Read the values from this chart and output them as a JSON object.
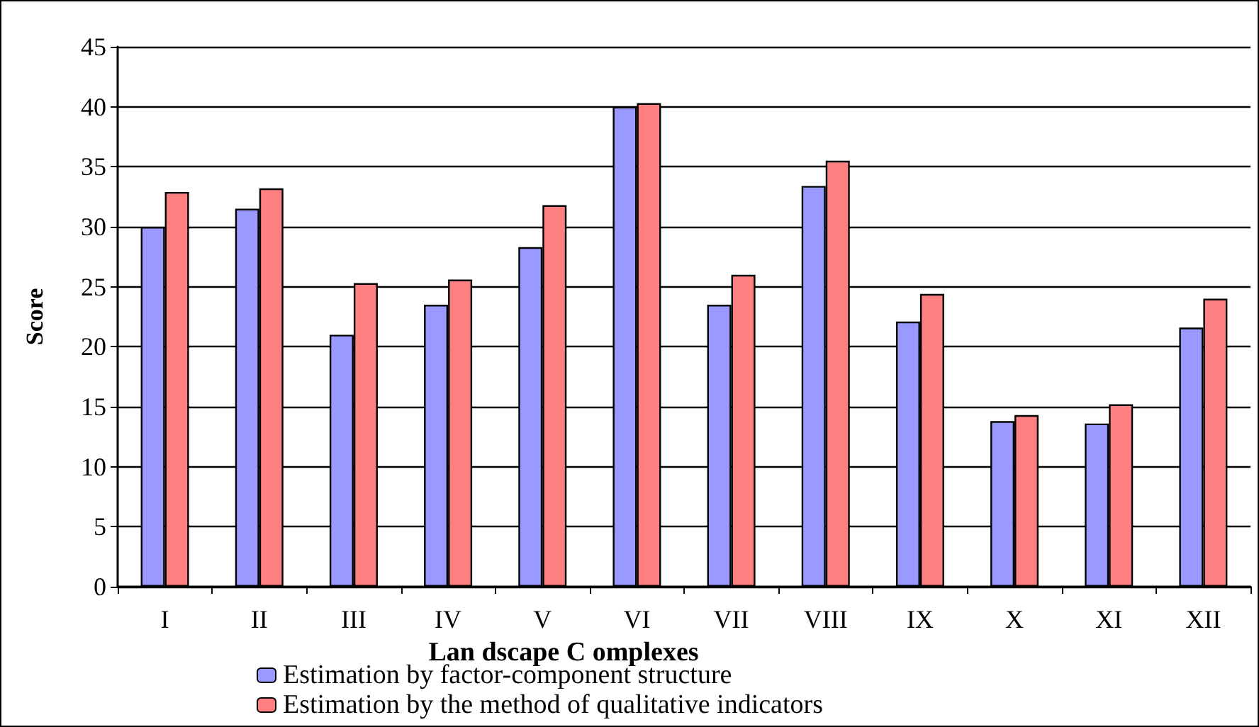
{
  "chart_data": {
    "type": "bar",
    "xlabel": "Lan dscape C omplexes",
    "ylabel": "Score",
    "categories": [
      "I",
      "II",
      "III",
      "IV",
      "V",
      "VI",
      "VII",
      "VIII",
      "IX",
      "X",
      "XI",
      "XII"
    ],
    "series": [
      {
        "name": "Estimation by factor-component structure",
        "color": "#9999ff",
        "values": [
          30,
          31.5,
          21,
          23.5,
          28.3,
          40,
          23.5,
          33.4,
          22.1,
          13.8,
          13.6,
          21.6
        ]
      },
      {
        "name": "Estimation by the method of qualitative indicators",
        "color": "#ff8080",
        "values": [
          32.9,
          33.2,
          25.3,
          25.6,
          31.8,
          40.3,
          26,
          35.5,
          24.4,
          14.3,
          15.2,
          24
        ]
      }
    ],
    "ylim": [
      0,
      45
    ],
    "yticks": [
      0,
      5,
      10,
      15,
      20,
      25,
      30,
      35,
      40,
      45
    ],
    "grid": "y",
    "legend": "bottom left"
  }
}
